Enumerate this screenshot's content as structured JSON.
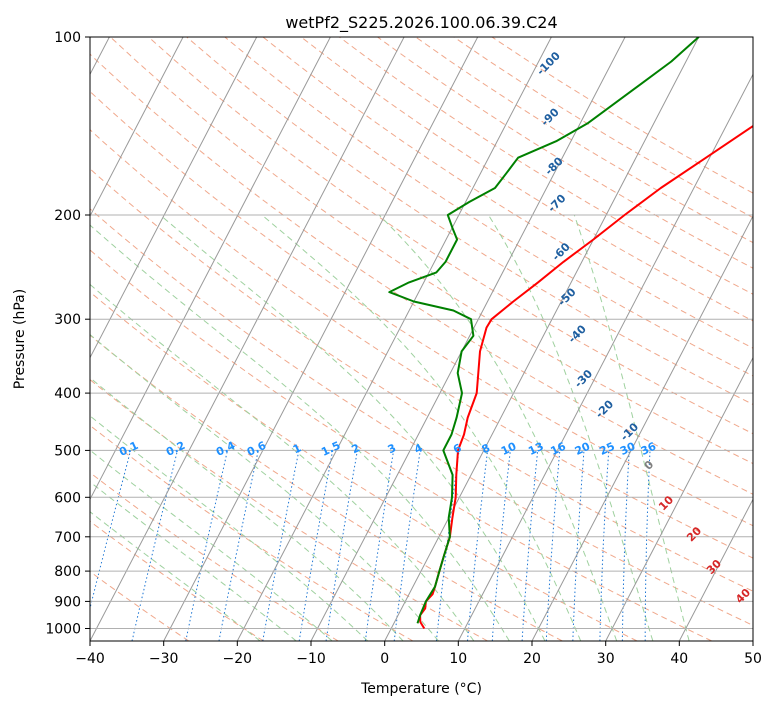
{
  "chart_data": {
    "type": "line",
    "subtype": "skew-T log-p diagram",
    "title": "wetPf2_S225.2026.100.06.39.C24",
    "xlabel": "Temperature (°C)",
    "ylabel": "Pressure (hPa)",
    "xlim": [
      -40,
      50
    ],
    "ylim": [
      1050,
      100
    ],
    "grid": true,
    "x_ticks": [
      -40,
      -30,
      -20,
      -10,
      0,
      10,
      20,
      30,
      40,
      50
    ],
    "x_tick_labels": [
      "−40",
      "−30",
      "−20",
      "−10",
      "0",
      "10",
      "20",
      "30",
      "40",
      "50"
    ],
    "y_ticks": [
      100,
      200,
      300,
      400,
      500,
      600,
      700,
      800,
      900,
      1000
    ],
    "y_tick_labels": [
      "100",
      "200",
      "300",
      "400",
      "500",
      "600",
      "700",
      "800",
      "900",
      "1000"
    ],
    "skew_isotherm_labels": [
      {
        "text": "-100",
        "p": 112,
        "T": -18
      },
      {
        "text": "-90",
        "p": 138,
        "T": -14
      },
      {
        "text": "-80",
        "p": 167,
        "T": -10
      },
      {
        "text": "-70",
        "p": 193,
        "T": -7
      },
      {
        "text": "-60",
        "p": 233,
        "T": -3
      },
      {
        "text": "-50",
        "p": 278,
        "T": 1
      },
      {
        "text": "-40",
        "p": 321,
        "T": 5
      },
      {
        "text": "-30",
        "p": 382,
        "T": 9
      },
      {
        "text": "-20",
        "p": 430,
        "T": 14
      },
      {
        "text": "-10",
        "p": 470,
        "T": 19
      },
      {
        "text": "0",
        "p": 535,
        "T": 24
      },
      {
        "text": "10",
        "p": 620,
        "T": 29
      },
      {
        "text": "20",
        "p": 700,
        "T": 35
      },
      {
        "text": "30",
        "p": 795,
        "T": 40
      },
      {
        "text": "40",
        "p": 890,
        "T": 46
      }
    ],
    "mixing_ratio_labels": [
      "0.1",
      "0.2",
      "0.4",
      "0.6",
      "1",
      "1.5",
      "2",
      "3",
      "4",
      "6",
      "8",
      "10",
      "13",
      "16",
      "20",
      "25",
      "30",
      "36"
    ],
    "mixing_ratio_values": [
      0.1,
      0.2,
      0.4,
      0.6,
      1,
      1.5,
      2,
      3,
      4,
      6,
      8,
      10,
      13,
      16,
      20,
      25,
      30,
      36
    ],
    "series": [
      {
        "name": "Temperature",
        "color": "#ff0000",
        "points": [
          [
            1000,
            4.5
          ],
          [
            975,
            3.5
          ],
          [
            950,
            3.0
          ],
          [
            925,
            3.2
          ],
          [
            900,
            2.8
          ],
          [
            875,
            3.2
          ],
          [
            850,
            3.0
          ],
          [
            800,
            2.5
          ],
          [
            750,
            2.0
          ],
          [
            700,
            1.5
          ],
          [
            650,
            0.5
          ],
          [
            600,
            -0.5
          ],
          [
            550,
            -2.0
          ],
          [
            500,
            -3.5
          ],
          [
            470,
            -3.8
          ],
          [
            440,
            -4.5
          ],
          [
            400,
            -5.0
          ],
          [
            370,
            -6.2
          ],
          [
            340,
            -7.5
          ],
          [
            310,
            -8.3
          ],
          [
            300,
            -8.2
          ],
          [
            280,
            -6.5
          ],
          [
            260,
            -4.5
          ],
          [
            240,
            -2.5
          ],
          [
            220,
            0.0
          ],
          [
            200,
            2.5
          ],
          [
            180,
            5.5
          ],
          [
            160,
            9.5
          ],
          [
            140,
            14.0
          ],
          [
            120,
            20.0
          ],
          [
            110,
            23.5
          ],
          [
            100,
            27.0
          ]
        ]
      },
      {
        "name": "Dewpoint",
        "color": "#008000",
        "points": [
          [
            980,
            3.2
          ],
          [
            950,
            3.0
          ],
          [
            900,
            2.8
          ],
          [
            850,
            3.0
          ],
          [
            800,
            2.5
          ],
          [
            750,
            2.0
          ],
          [
            700,
            1.5
          ],
          [
            650,
            0.0
          ],
          [
            600,
            -1.0
          ],
          [
            550,
            -2.5
          ],
          [
            500,
            -5.5
          ],
          [
            470,
            -5.5
          ],
          [
            440,
            -6.0
          ],
          [
            400,
            -7.0
          ],
          [
            370,
            -9.0
          ],
          [
            340,
            -10.0
          ],
          [
            320,
            -9.5
          ],
          [
            300,
            -11.0
          ],
          [
            290,
            -14.0
          ],
          [
            280,
            -20.0
          ],
          [
            270,
            -24.0
          ],
          [
            260,
            -22.0
          ],
          [
            250,
            -19.0
          ],
          [
            240,
            -18.5
          ],
          [
            220,
            -18.5
          ],
          [
            210,
            -20.0
          ],
          [
            200,
            -21.5
          ],
          [
            190,
            -19.5
          ],
          [
            180,
            -17.0
          ],
          [
            170,
            -16.5
          ],
          [
            160,
            -16.0
          ],
          [
            150,
            -12.0
          ],
          [
            140,
            -9.0
          ],
          [
            120,
            -4.5
          ],
          [
            110,
            -2.0
          ],
          [
            100,
            0.0
          ]
        ]
      }
    ],
    "colors": {
      "dry_adiabats": "#f0a88c",
      "moist_adiabats": "#9fd19f",
      "mixing_ratio": "#1f77d4",
      "isotherms": "#999999",
      "isotherm_label_blue": "#1f5fa0",
      "isotherm_label_red": "#d62728",
      "isotherm_label_zero": "#808080",
      "mixing_ratio_label": "#1e90ff"
    }
  }
}
